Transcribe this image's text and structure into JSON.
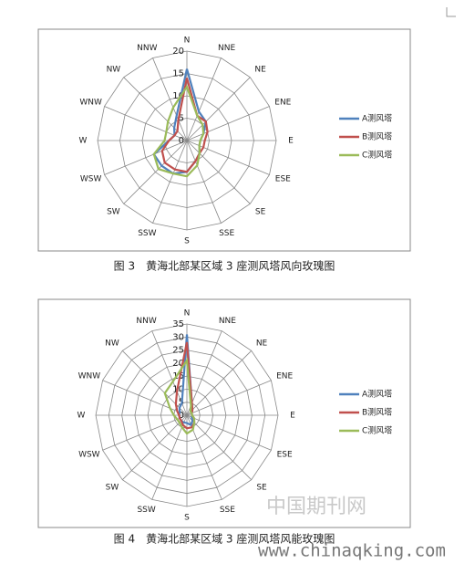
{
  "chart_data": [
    {
      "type": "radar",
      "caption": "图 3　黄海北部某区域 3 座测风塔风向玫瑰图",
      "categories": [
        "N",
        "NNE",
        "NE",
        "ENE",
        "E",
        "ESE",
        "SE",
        "SSE",
        "S",
        "SSW",
        "SW",
        "WSW",
        "W",
        "WNW",
        "NW",
        "NNW"
      ],
      "rlim": [
        0,
        20
      ],
      "rticks": [
        0,
        5,
        10,
        15,
        20
      ],
      "grid": true,
      "legend": "right",
      "series": [
        {
          "name": "A测风塔",
          "color": "#4f81bd",
          "values": [
            16,
            7,
            6,
            4,
            3,
            3,
            4,
            5,
            7,
            8,
            8,
            8,
            4,
            3,
            4,
            6
          ]
        },
        {
          "name": "B测风塔",
          "color": "#c0504d",
          "values": [
            14,
            6,
            6,
            5,
            4,
            4,
            4,
            5,
            7,
            7,
            7,
            6,
            4,
            3,
            3,
            5
          ]
        },
        {
          "name": "C测风塔",
          "color": "#9bbb59",
          "values": [
            12,
            6,
            5,
            4,
            3,
            3,
            4,
            6,
            8,
            8,
            9,
            8,
            5,
            5,
            6,
            8
          ]
        }
      ]
    },
    {
      "type": "radar",
      "caption": "图 4　黄海北部某区域 3 座测风塔风能玫瑰图",
      "categories": [
        "N",
        "NNE",
        "NE",
        "ENE",
        "E",
        "ESE",
        "SE",
        "SSE",
        "S",
        "SSW",
        "SW",
        "WSW",
        "W",
        "WNW",
        "NW",
        "NNW"
      ],
      "rlim": [
        0,
        35
      ],
      "rticks": [
        0,
        5,
        10,
        15,
        20,
        25,
        30,
        35
      ],
      "grid": true,
      "legend": "right",
      "series": [
        {
          "name": "A测风塔",
          "color": "#4f81bd",
          "values": [
            31,
            5,
            3,
            2,
            2,
            2,
            3,
            4,
            3,
            3,
            3,
            3,
            3,
            3,
            4,
            5
          ]
        },
        {
          "name": "B测风塔",
          "color": "#c0504d",
          "values": [
            28,
            5,
            3,
            2,
            2,
            3,
            4,
            5,
            5,
            4,
            3,
            3,
            3,
            4,
            6,
            10
          ]
        },
        {
          "name": "C测风塔",
          "color": "#9bbb59",
          "values": [
            21,
            4,
            2,
            2,
            2,
            3,
            4,
            6,
            7,
            5,
            4,
            4,
            5,
            7,
            12,
            14
          ]
        }
      ]
    }
  ],
  "watermark": {
    "text": "中国期刊网",
    "url": "www.chinaqking.com"
  }
}
